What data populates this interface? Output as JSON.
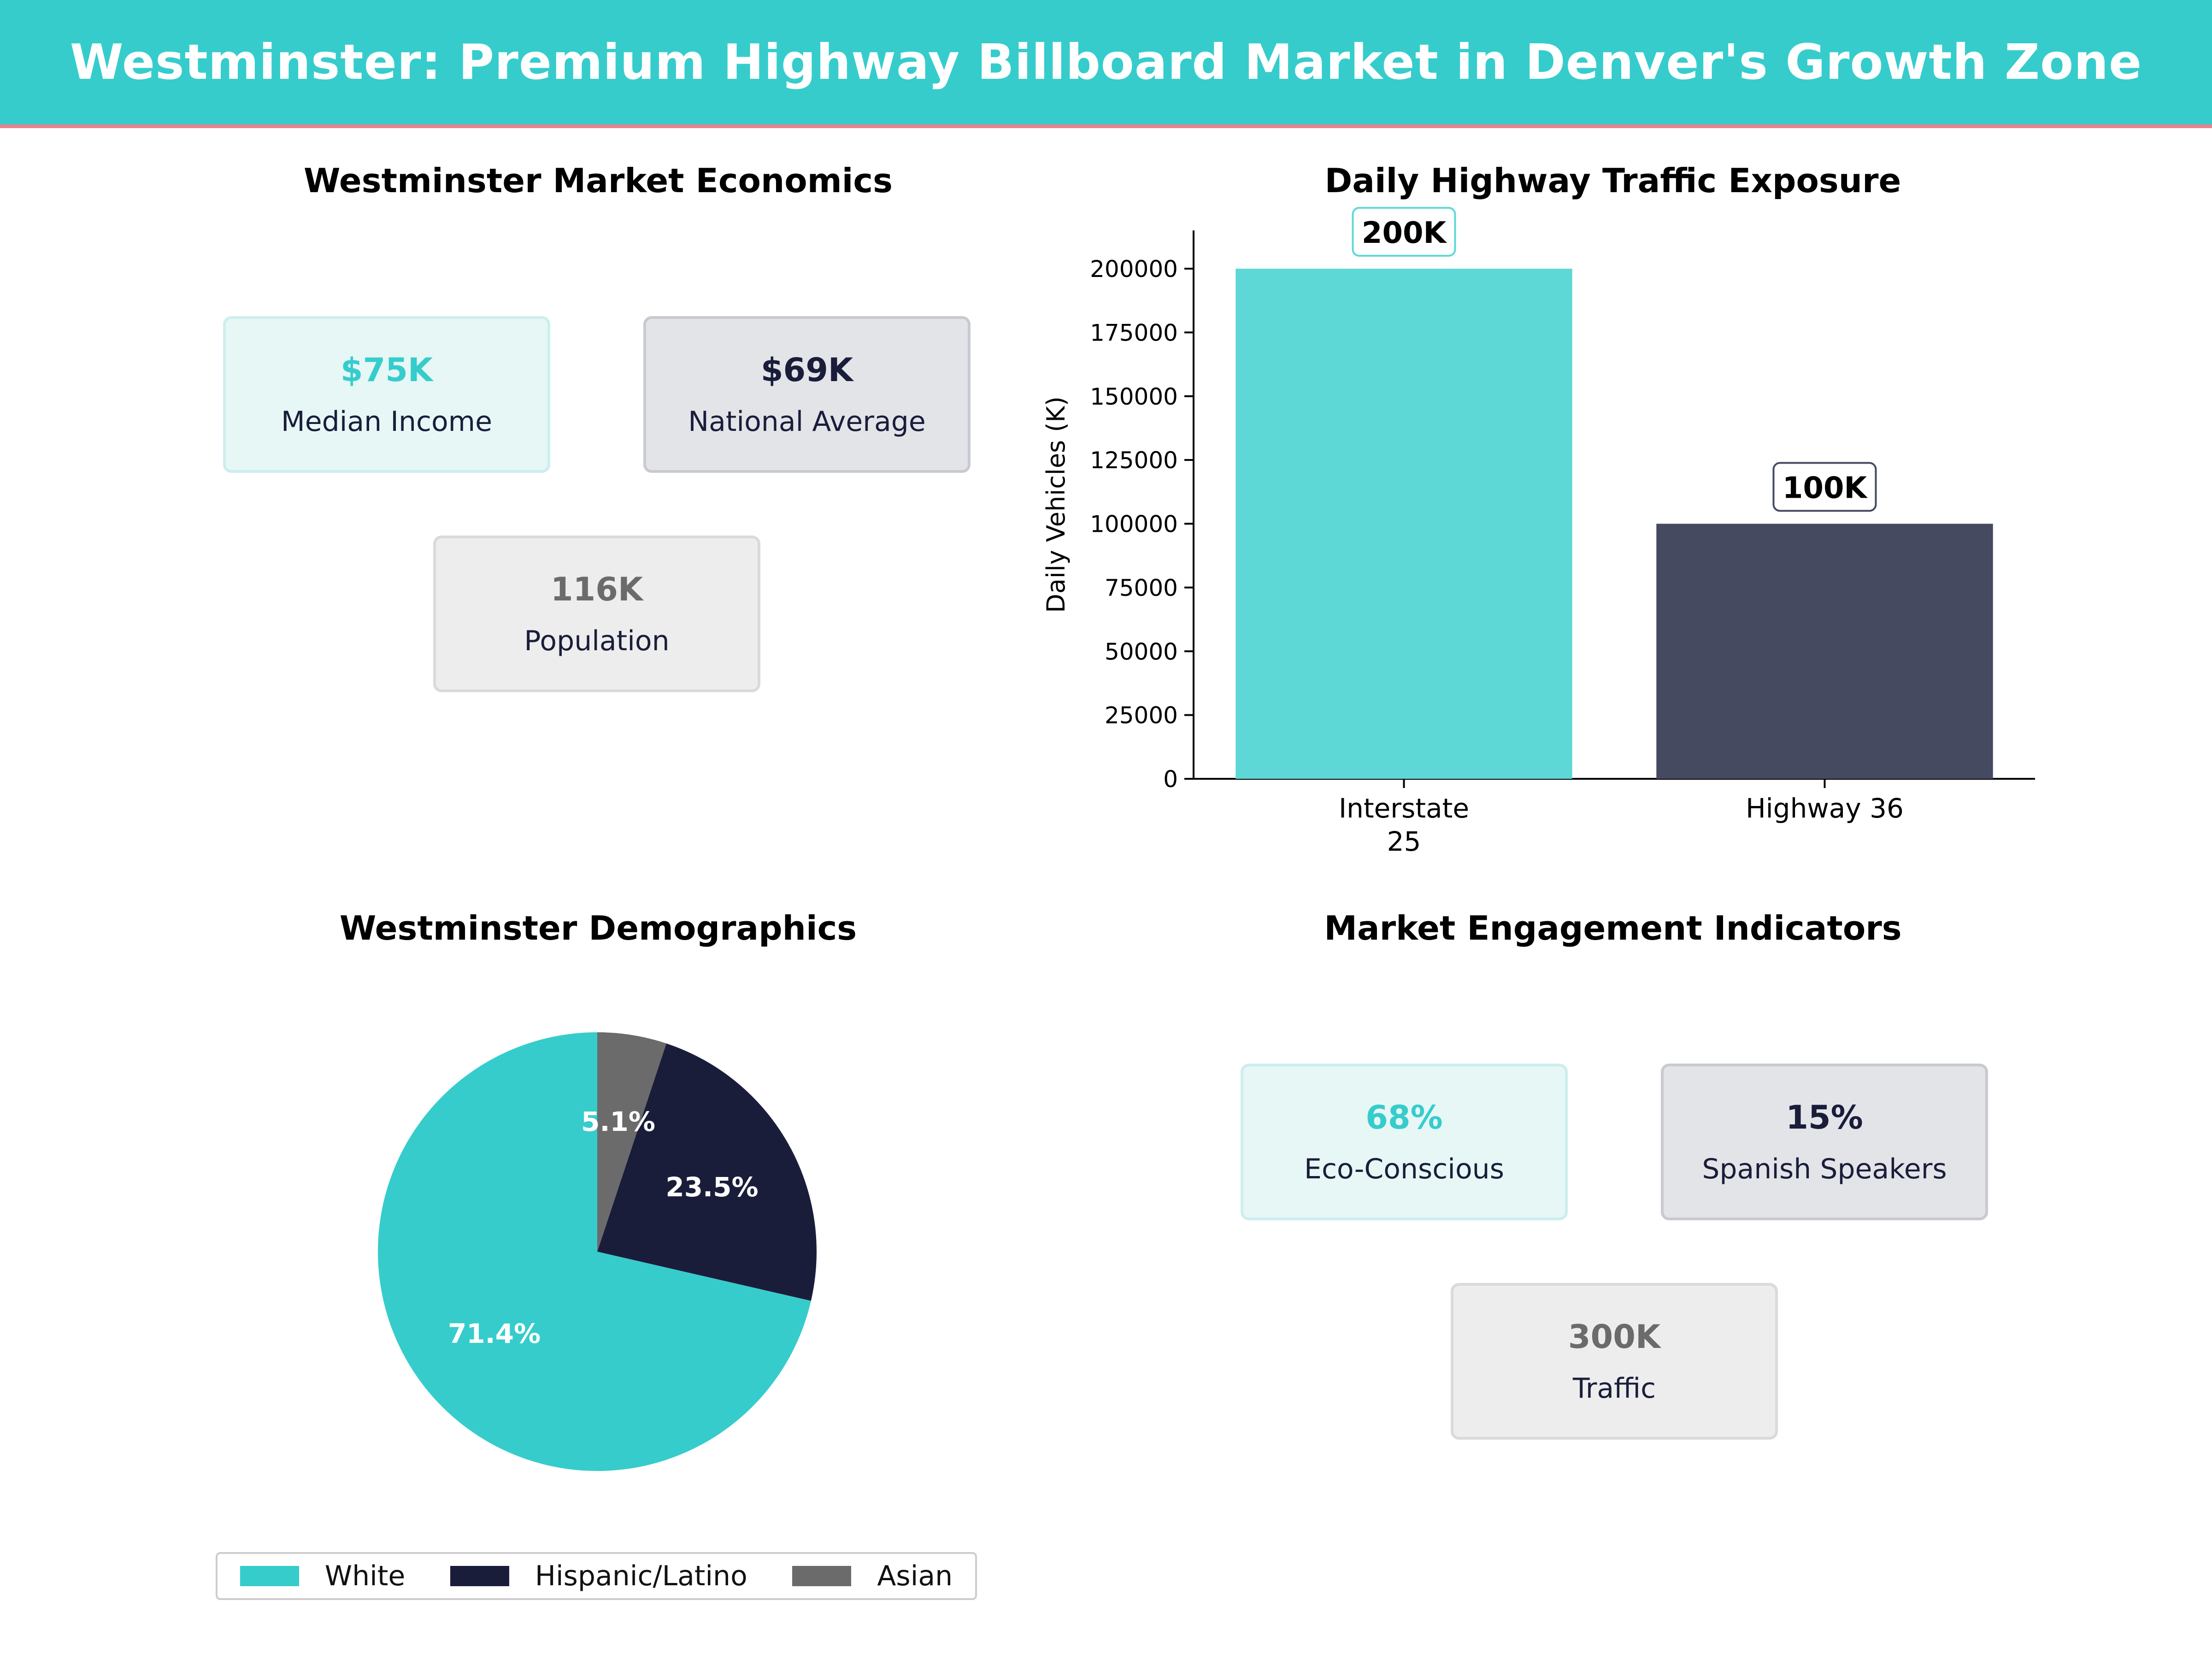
{
  "header": {
    "title": "Westminster: Premium Highway Billboard Market in Denver's Growth Zone"
  },
  "economics": {
    "title": "Westminster Market Economics",
    "cards": [
      {
        "value": "$75K",
        "label": "Median Income"
      },
      {
        "value": "$69K",
        "label": "National Average"
      },
      {
        "value": "116K",
        "label": "Population"
      }
    ]
  },
  "engagement": {
    "title": "Market Engagement Indicators",
    "cards": [
      {
        "value": "68%",
        "label": "Eco-Conscious"
      },
      {
        "value": "15%",
        "label": "Spanish Speakers"
      },
      {
        "value": "300K",
        "label": "Traffic"
      }
    ]
  },
  "colors": {
    "teal": "#36cccc",
    "teal_light": "#5dd8d6",
    "navy": "#1a1d3a",
    "slate": "#454a61",
    "gray": "#6b6b6b",
    "accent_line": "#e8848c"
  },
  "chart_data": [
    {
      "type": "bar",
      "title": "Daily Highway Traffic Exposure",
      "categories": [
        "Interstate 25",
        "Highway 36"
      ],
      "category_lines": [
        [
          "Interstate",
          "25"
        ],
        [
          "Highway 36"
        ]
      ],
      "values": [
        200000,
        100000
      ],
      "data_labels": [
        "200K",
        "100K"
      ],
      "colors": [
        "#5dd8d6",
        "#454a61"
      ],
      "ylabel": "Daily Vehicles (K)",
      "ylim": [
        0,
        215000
      ],
      "yticks": [
        0,
        25000,
        50000,
        75000,
        100000,
        125000,
        150000,
        175000,
        200000
      ],
      "grid": false
    },
    {
      "type": "pie",
      "title": "Westminster Demographics",
      "labels": [
        "White",
        "Hispanic/Latino",
        "Asian"
      ],
      "values": [
        71.4,
        23.5,
        5.1
      ],
      "value_labels": [
        "71.4%",
        "23.5%",
        "5.1%"
      ],
      "colors": [
        "#36cccc",
        "#1a1d3a",
        "#6b6b6b"
      ],
      "legend_position": "bottom"
    }
  ]
}
